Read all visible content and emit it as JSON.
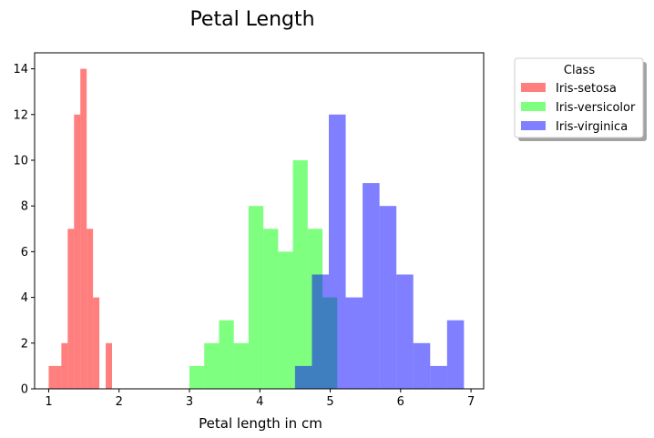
{
  "chart_data": {
    "type": "bar",
    "subtype": "overlaid-histogram",
    "title": "Petal Length",
    "xlabel": "Petal length in cm",
    "ylabel": "",
    "xlim": [
      0.8,
      7.18
    ],
    "ylim": [
      0,
      14.7
    ],
    "xticks": [
      1,
      2,
      3,
      4,
      5,
      6,
      7
    ],
    "yticks": [
      0,
      2,
      4,
      6,
      8,
      10,
      12,
      14
    ],
    "grid": false,
    "legend": {
      "title": "Class",
      "placement": "outside-top-right"
    },
    "series": [
      {
        "name": "Iris-setosa",
        "color": "#ff0000",
        "alpha": 0.5,
        "bin_width": 0.09,
        "bins": [
          {
            "x0": 1.0,
            "count": 1
          },
          {
            "x0": 1.09,
            "count": 1
          },
          {
            "x0": 1.18,
            "count": 2
          },
          {
            "x0": 1.27,
            "count": 7
          },
          {
            "x0": 1.36,
            "count": 12
          },
          {
            "x0": 1.45,
            "count": 14
          },
          {
            "x0": 1.54,
            "count": 7
          },
          {
            "x0": 1.63,
            "count": 4
          },
          {
            "x0": 1.72,
            "count": 0
          },
          {
            "x0": 1.81,
            "count": 2
          }
        ]
      },
      {
        "name": "Iris-versicolor",
        "color": "#00ff00",
        "alpha": 0.5,
        "bin_width": 0.21,
        "bins": [
          {
            "x0": 3.0,
            "count": 1
          },
          {
            "x0": 3.21,
            "count": 2
          },
          {
            "x0": 3.42,
            "count": 3
          },
          {
            "x0": 3.63,
            "count": 2
          },
          {
            "x0": 3.84,
            "count": 8
          },
          {
            "x0": 4.05,
            "count": 7
          },
          {
            "x0": 4.26,
            "count": 6
          },
          {
            "x0": 4.47,
            "count": 10
          },
          {
            "x0": 4.68,
            "count": 7
          },
          {
            "x0": 4.89,
            "count": 4
          }
        ]
      },
      {
        "name": "Iris-virginica",
        "color": "#0000ff",
        "alpha": 0.5,
        "bin_width": 0.24,
        "bins": [
          {
            "x0": 4.5,
            "count": 1
          },
          {
            "x0": 4.74,
            "count": 5
          },
          {
            "x0": 4.98,
            "count": 12
          },
          {
            "x0": 5.22,
            "count": 4
          },
          {
            "x0": 5.46,
            "count": 9
          },
          {
            "x0": 5.7,
            "count": 8
          },
          {
            "x0": 5.94,
            "count": 5
          },
          {
            "x0": 6.18,
            "count": 2
          },
          {
            "x0": 6.42,
            "count": 1
          },
          {
            "x0": 6.66,
            "count": 3
          }
        ]
      }
    ]
  }
}
